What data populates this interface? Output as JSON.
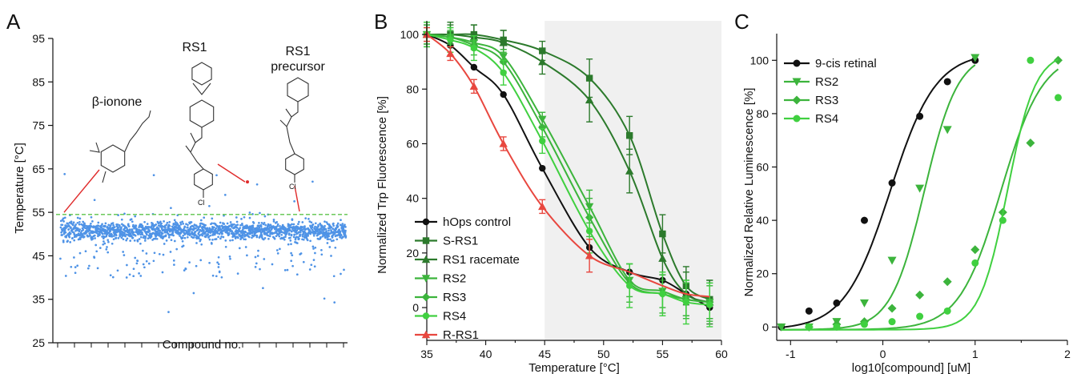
{
  "colors": {
    "scatter": "#4f93e6",
    "dashed": "#5cc34a",
    "annot_line": "#e02b2b",
    "black": "#111111",
    "dark_green": "#2c7a2c",
    "green": "#3cb43c",
    "light_green": "#40d040",
    "red": "#e8473f",
    "shade": "#f0f0f0"
  },
  "panels": {
    "a": {
      "letter": "A"
    },
    "b": {
      "letter": "B"
    },
    "c": {
      "letter": "C"
    }
  },
  "chart_data": [
    {
      "type": "scatter",
      "panel": "A",
      "xlabel": "Compound no.",
      "ylabel": "Temperature [°C]",
      "ylim": [
        25,
        95
      ],
      "yticks": [
        25,
        35,
        45,
        55,
        65,
        75,
        85,
        95
      ],
      "threshold": 54.5,
      "approx_point_count": 1800,
      "typical_range": [
        45,
        55
      ],
      "annotations": [
        "β-ionone",
        "RS1",
        "RS1",
        "precursor"
      ],
      "highlighted_points": [
        {
          "label": "β-ionone",
          "y": 55.0
        },
        {
          "label": "RS1",
          "y": 62.0
        },
        {
          "label": "RS1 precursor",
          "y": 55.2
        }
      ]
    },
    {
      "type": "line",
      "panel": "B",
      "xlabel": "Temperature [°C]",
      "ylabel": "Normalized Trp Fluorescence [%]",
      "xlim": [
        35,
        60
      ],
      "ylim": [
        -12,
        105
      ],
      "xticks": [
        35,
        40,
        45,
        50,
        55,
        60
      ],
      "yticks": [
        0,
        20,
        40,
        60,
        80,
        100
      ],
      "shaded_from_x": 45,
      "legend_position": "bottom-left",
      "series": [
        {
          "name": "hOps control",
          "color": "#111111",
          "marker": "circle",
          "x": [
            35,
            37,
            39,
            41.5,
            44.8,
            48.8,
            52.2,
            55,
            57,
            59
          ],
          "y": [
            100,
            96,
            88,
            78,
            51,
            22,
            13,
            10,
            5,
            0
          ],
          "errors": false
        },
        {
          "name": "S-RS1",
          "color": "#2c7a2c",
          "marker": "square",
          "x": [
            35,
            37,
            39,
            41.5,
            44.8,
            48.8,
            52.2,
            55,
            57,
            59
          ],
          "y": [
            100,
            100,
            100,
            98,
            94,
            84,
            63,
            27,
            8,
            3
          ],
          "errors": true
        },
        {
          "name": "RS1 racemate",
          "color": "#2c7a2c",
          "marker": "triangle-up",
          "x": [
            35,
            37,
            39,
            41.5,
            44.8,
            48.8,
            52.2,
            55,
            57,
            59
          ],
          "y": [
            100,
            100,
            99,
            97,
            90,
            76,
            50,
            18,
            5,
            2
          ],
          "errors": true
        },
        {
          "name": "RS2",
          "color": "#3cb43c",
          "marker": "triangle-down",
          "x": [
            35,
            37,
            39,
            41.5,
            44.8,
            48.8,
            52.2,
            55,
            57,
            59
          ],
          "y": [
            100,
            99,
            97,
            92,
            69,
            37,
            10,
            6,
            3,
            2
          ],
          "errors": true
        },
        {
          "name": "RS3",
          "color": "#3cb43c",
          "marker": "diamond",
          "x": [
            35,
            37,
            39,
            41.5,
            44.8,
            48.8,
            52.2,
            55,
            57,
            59
          ],
          "y": [
            100,
            99,
            96,
            90,
            66,
            33,
            9,
            5,
            3,
            2
          ],
          "errors": true
        },
        {
          "name": "RS4",
          "color": "#40d040",
          "marker": "circle",
          "x": [
            35,
            37,
            39,
            41.5,
            44.8,
            48.8,
            52.2,
            55,
            57,
            59
          ],
          "y": [
            100,
            98,
            95,
            86,
            61,
            28,
            8,
            5,
            2,
            1
          ],
          "errors": true
        },
        {
          "name": "R-RS1",
          "color": "#e8473f",
          "marker": "triangle-up",
          "x": [
            35,
            37,
            39,
            41.5,
            44.8,
            48.8
          ],
          "y": [
            100,
            93,
            81,
            60,
            37,
            19
          ],
          "errors": true
        }
      ]
    },
    {
      "type": "line",
      "panel": "C",
      "xlabel": "log10[compound] [uM]",
      "ylabel": "Normalized Relative Luminescence [%]",
      "xlim": [
        -1.15,
        2.0
      ],
      "ylim": [
        -5,
        110
      ],
      "xticks": [
        -1,
        0,
        1,
        2
      ],
      "yticks": [
        0,
        20,
        40,
        60,
        80,
        100
      ],
      "legend_position": "top-left",
      "series": [
        {
          "name": "9-cis retinal",
          "color": "#111111",
          "marker": "circle",
          "x": [
            -1.1,
            -0.8,
            -0.5,
            -0.2,
            0.1,
            0.4,
            0.7,
            1.0
          ],
          "y": [
            0,
            6,
            9,
            40,
            54,
            79,
            92,
            100
          ]
        },
        {
          "name": "RS2",
          "color": "#3cb43c",
          "marker": "triangle-down",
          "x": [
            -1.1,
            -0.8,
            -0.5,
            -0.2,
            0.1,
            0.4,
            0.7,
            1.0
          ],
          "y": [
            0,
            0,
            2,
            9,
            25,
            52,
            74,
            101
          ]
        },
        {
          "name": "RS3",
          "color": "#3cb43c",
          "marker": "diamond",
          "x": [
            -0.8,
            -0.5,
            -0.2,
            0.1,
            0.4,
            0.7,
            1.0,
            1.3,
            1.6,
            1.9
          ],
          "y": [
            0,
            1,
            2,
            7,
            12,
            17,
            29,
            43,
            69,
            100
          ]
        },
        {
          "name": "RS4",
          "color": "#40d040",
          "marker": "circle",
          "x": [
            -0.8,
            -0.5,
            -0.2,
            0.1,
            0.4,
            0.7,
            1.0,
            1.3,
            1.6,
            1.9
          ],
          "y": [
            0,
            0,
            1,
            2,
            4,
            6,
            24,
            40,
            100,
            86
          ]
        }
      ]
    }
  ]
}
